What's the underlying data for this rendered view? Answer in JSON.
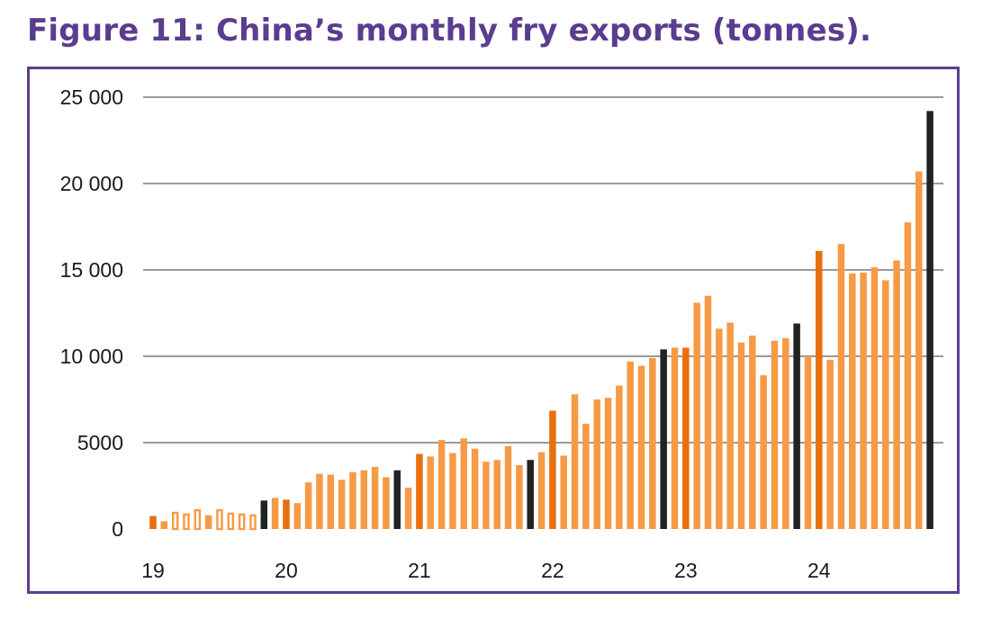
{
  "title": "Figure 11: China’s monthly fry exports (tonnes).",
  "colors": {
    "bar": "#f79a45",
    "bar_highlight": "#e8700f",
    "bar_year_end": "#222222",
    "grid": "#9a9a9a",
    "frame": "#5a3d8f",
    "title": "#5a3d8f"
  },
  "chart_data": {
    "type": "bar",
    "title": "Figure 11: China’s monthly fry exports (tonnes).",
    "xlabel": "",
    "ylabel": "",
    "ylim": [
      0,
      25000
    ],
    "y_ticks": [
      0,
      5000,
      10000,
      15000,
      20000,
      25000
    ],
    "y_tick_labels": [
      "0",
      "5000",
      "10 000",
      "15 000",
      "20 000",
      "25 000"
    ],
    "x_tick_labels": [
      "19",
      "20",
      "21",
      "22",
      "23",
      "24"
    ],
    "x_tick_start_index": [
      0,
      12,
      24,
      36,
      48,
      60
    ],
    "grid": true,
    "legend": "none",
    "values": [
      750,
      450,
      1000,
      900,
      1150,
      800,
      1150,
      950,
      900,
      850,
      1650,
      1800,
      1700,
      1500,
      2700,
      3200,
      3150,
      2850,
      3300,
      3400,
      3600,
      3000,
      3400,
      2400,
      4350,
      4200,
      5150,
      4400,
      5250,
      4650,
      3900,
      4000,
      4800,
      3700,
      4000,
      4450,
      6850,
      4250,
      7800,
      6100,
      7500,
      7600,
      8300,
      9700,
      9450,
      9900,
      10400,
      10500,
      10500,
      13100,
      13500,
      11600,
      11950,
      10800,
      11200,
      8900,
      10900,
      11050,
      11900,
      10000,
      16100,
      9800,
      16500,
      14800,
      14850,
      15150,
      14400,
      15550,
      17750,
      20700,
      24200
    ],
    "bar_style": [
      "highlight",
      "normal",
      "outline",
      "outline",
      "outline",
      "normal",
      "outline",
      "outline",
      "outline",
      "outline",
      "year_end",
      "normal",
      "highlight",
      "normal",
      "normal",
      "normal",
      "normal",
      "normal",
      "normal",
      "normal",
      "normal",
      "normal",
      "year_end",
      "normal",
      "highlight",
      "normal",
      "normal",
      "normal",
      "normal",
      "normal",
      "normal",
      "normal",
      "normal",
      "normal",
      "year_end",
      "normal",
      "highlight",
      "normal",
      "normal",
      "normal",
      "normal",
      "normal",
      "normal",
      "normal",
      "normal",
      "normal",
      "year_end",
      "normal",
      "highlight",
      "normal",
      "normal",
      "normal",
      "normal",
      "normal",
      "normal",
      "normal",
      "normal",
      "normal",
      "year_end",
      "normal",
      "highlight",
      "normal",
      "normal",
      "normal",
      "normal",
      "normal",
      "normal",
      "normal",
      "normal",
      "normal",
      "year_end"
    ]
  }
}
